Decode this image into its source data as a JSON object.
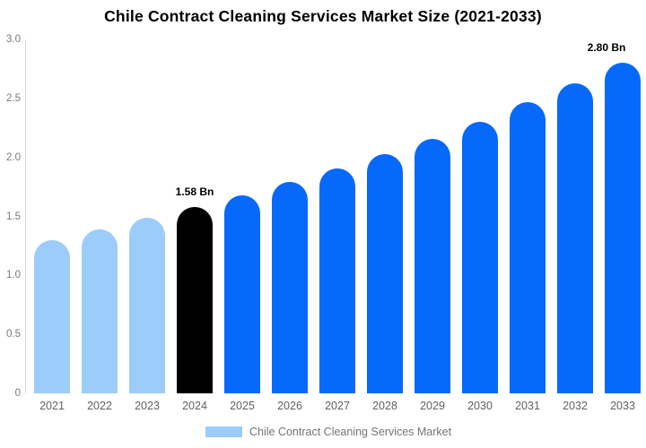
{
  "title": "Chile Contract Cleaning Services Market Size (2021-2033)",
  "legend": {
    "label": "Chile Contract Cleaning Services Market",
    "swatch_color": "#9CCCFA"
  },
  "colors": {
    "light_blue": "#9CCCFA",
    "highlight_black": "#000000",
    "bright_blue": "#0669FB",
    "axis_line": "#d9d9d9",
    "tick_text": "#7a7a7a",
    "year_text": "#616161",
    "legend_text": "#757575"
  },
  "chart_data": {
    "type": "bar",
    "title": "Chile Contract Cleaning Services Market Size (2021-2033)",
    "xlabel": "",
    "ylabel": "",
    "unit": "Bn",
    "categories": [
      "2021",
      "2022",
      "2023",
      "2024",
      "2025",
      "2026",
      "2027",
      "2028",
      "2029",
      "2030",
      "2031",
      "2032",
      "2033"
    ],
    "values": [
      1.3,
      1.39,
      1.49,
      1.58,
      1.68,
      1.79,
      1.91,
      2.03,
      2.16,
      2.3,
      2.47,
      2.63,
      2.8
    ],
    "bar_colors": [
      "#9CCCFA",
      "#9CCCFA",
      "#9CCCFA",
      "#000000",
      "#0669FB",
      "#0669FB",
      "#0669FB",
      "#0669FB",
      "#0669FB",
      "#0669FB",
      "#0669FB",
      "#0669FB",
      "#0669FB"
    ],
    "annotations": [
      {
        "category": "2024",
        "text": "1.58 Bn"
      },
      {
        "category": "2033",
        "text": "2.80 Bn"
      }
    ],
    "ylim": [
      0,
      3.0
    ],
    "ytick_labels": [
      "3.0",
      "2.5",
      "2.0",
      "1.5",
      "1.0",
      "0.5",
      "0"
    ],
    "ytick_values": [
      3.0,
      2.5,
      2.0,
      1.5,
      1.0,
      0.5,
      0
    ],
    "grid": false,
    "legend_position": "bottom",
    "legend_entries": [
      "Chile Contract Cleaning Services Market"
    ]
  }
}
